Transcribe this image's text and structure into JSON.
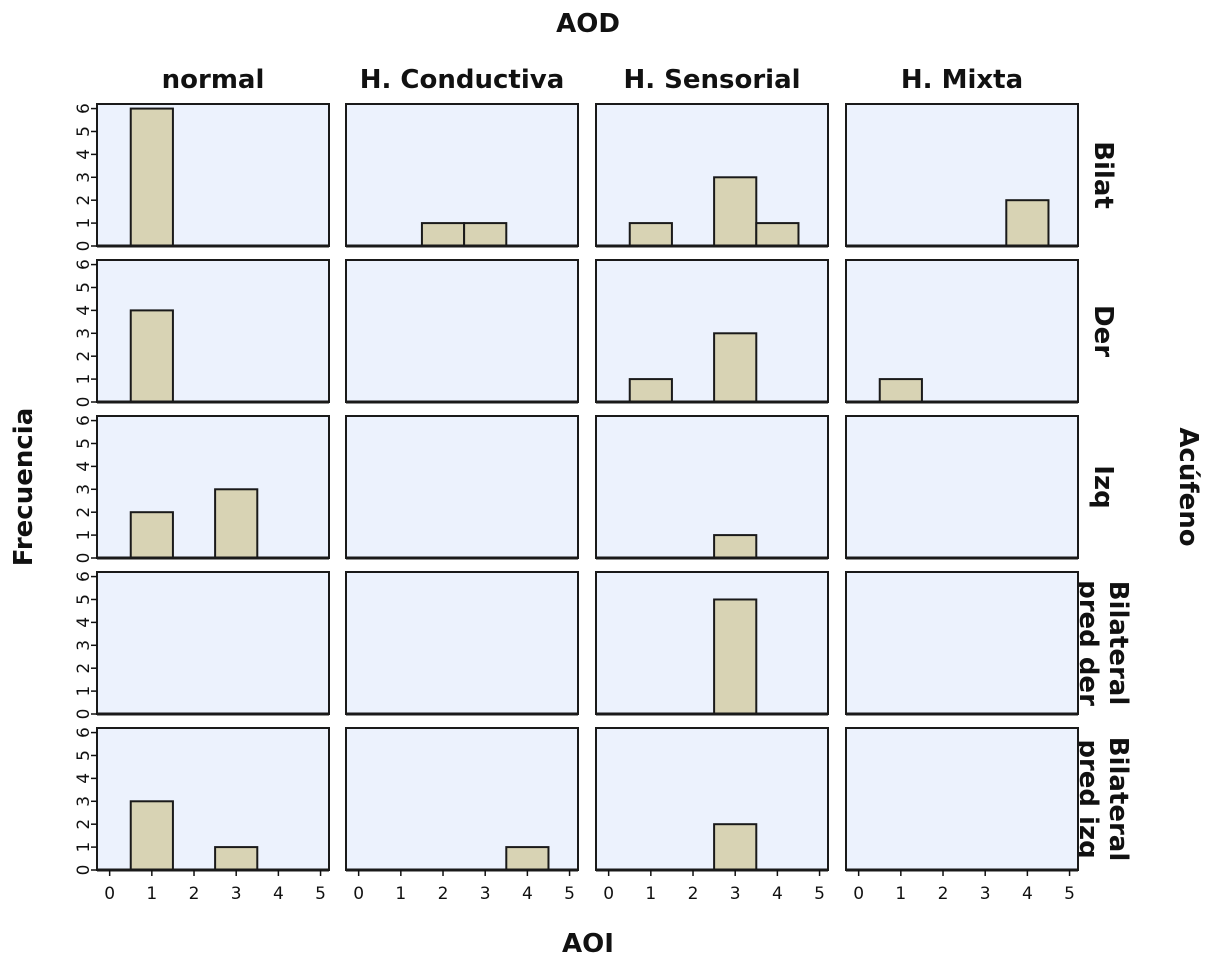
{
  "chart_data": {
    "type": "bar",
    "title": "AOD",
    "xlabel": "AOI",
    "ylabel": "Frecuencia",
    "row_facet_title": "Acúfeno",
    "columns": [
      "normal",
      "H. Conductiva",
      "H. Sensorial",
      "H. Mixta"
    ],
    "rows": [
      [
        "Bilat"
      ],
      [
        "Der"
      ],
      [
        "Izq"
      ],
      [
        "Bilateral",
        "pred der"
      ],
      [
        "Bilateral",
        "pred izq"
      ]
    ],
    "x_ticks": [
      0,
      1,
      2,
      3,
      4,
      5
    ],
    "y_ticks": [
      0,
      1,
      2,
      3,
      4,
      5,
      6
    ],
    "xlim": [
      -0.3,
      5.2
    ],
    "ylim": [
      0,
      6.2
    ],
    "bar_width": 1,
    "panels": [
      [
        [
          [
            1,
            6
          ]
        ],
        [
          [
            2,
            1
          ],
          [
            3,
            1
          ]
        ],
        [
          [
            1,
            1
          ],
          [
            3,
            3
          ],
          [
            4,
            1
          ]
        ],
        [
          [
            4,
            2
          ]
        ]
      ],
      [
        [
          [
            1,
            4
          ]
        ],
        [],
        [
          [
            1,
            1
          ],
          [
            3,
            3
          ]
        ],
        [
          [
            1,
            1
          ]
        ]
      ],
      [
        [
          [
            1,
            2
          ],
          [
            3,
            3
          ]
        ],
        [],
        [
          [
            3,
            1
          ]
        ],
        []
      ],
      [
        [],
        [],
        [
          [
            3,
            5
          ]
        ],
        []
      ],
      [
        [
          [
            1,
            3
          ],
          [
            3,
            1
          ]
        ],
        [
          [
            4,
            1
          ]
        ],
        [
          [
            3,
            2
          ]
        ],
        []
      ]
    ],
    "colors": {
      "bar_fill": "#d8d3b4",
      "bar_stroke": "#1a1a1a",
      "panel_bg": "#ecf2fd",
      "panel_border": "#1a1a1a"
    },
    "grid": false
  }
}
